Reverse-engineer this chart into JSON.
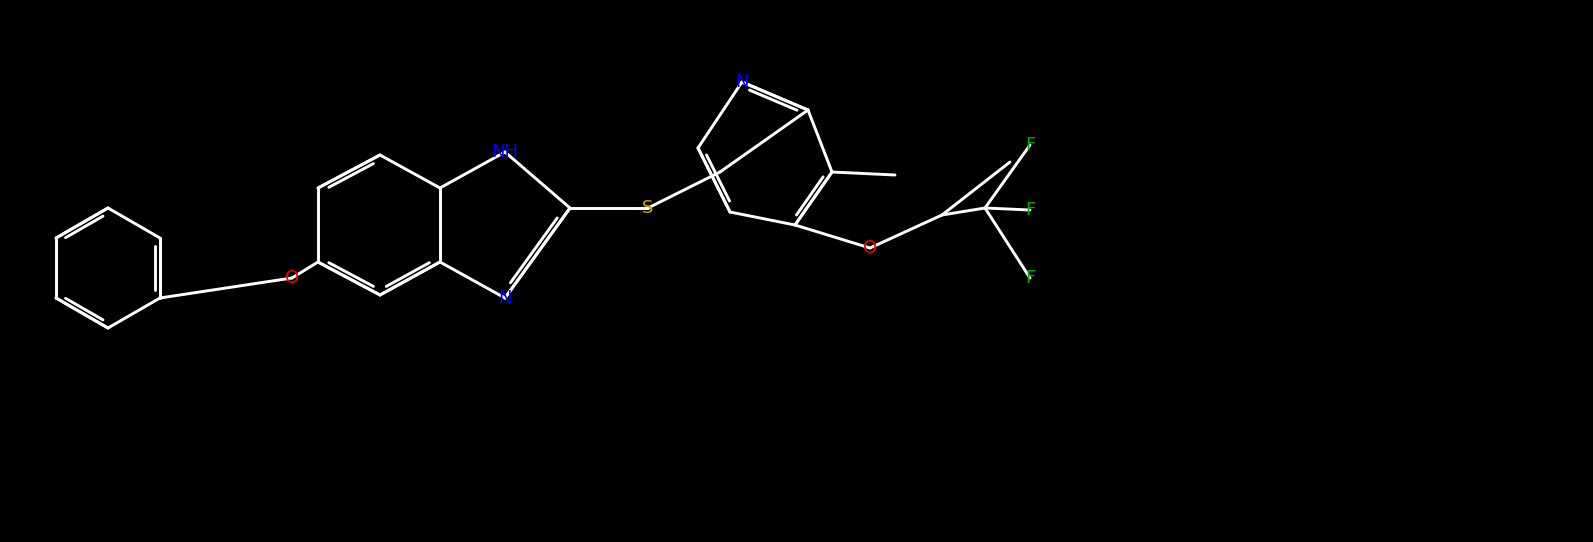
{
  "background_color": "#000000",
  "bond_color": "#ffffff",
  "bond_width": 2.0,
  "atom_colors": {
    "N": "#0000ff",
    "NH": "#0000ff",
    "S": "#ccaa00",
    "O": "#ff0000",
    "F": "#00aa00",
    "C": "#ffffff"
  },
  "font_size": 14,
  "fig_width": 15.93,
  "fig_height": 5.42
}
